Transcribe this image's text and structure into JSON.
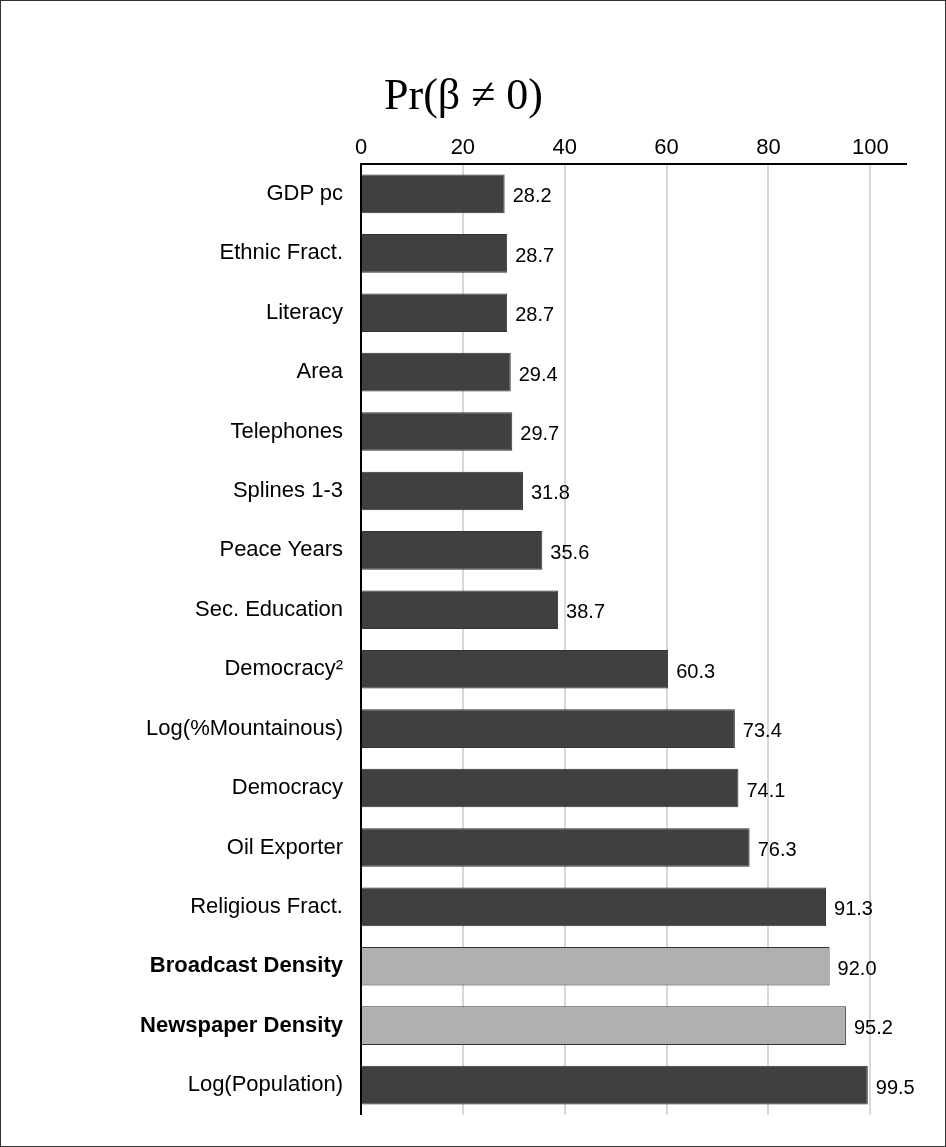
{
  "chart_data": {
    "type": "bar",
    "orientation": "horizontal",
    "title": "Pr(β ≠ 0)",
    "categories": [
      "GDP pc",
      "Ethnic Fract.",
      "Literacy",
      "Area",
      "Telephones",
      "Splines 1-3",
      "Peace Years",
      "Sec. Education",
      "Democracy²",
      "Log(%Mountainous)",
      "Democracy",
      "Oil Exporter",
      "Religious Fract.",
      "Broadcast Density",
      "Newspaper Density",
      "Log(Population)"
    ],
    "values": [
      28.2,
      28.7,
      28.7,
      29.4,
      29.7,
      31.8,
      35.6,
      38.7,
      60.3,
      73.4,
      74.1,
      76.3,
      91.3,
      92.0,
      95.2,
      99.5
    ],
    "colors": [
      "#404040",
      "#404040",
      "#404040",
      "#404040",
      "#404040",
      "#404040",
      "#404040",
      "#404040",
      "#404040",
      "#404040",
      "#404040",
      "#404040",
      "#404040",
      "#b0b0b0",
      "#b0b0b0",
      "#404040"
    ],
    "value_labels": [
      "28.2",
      "28.7",
      "28.7",
      "29.4",
      "29.7",
      "31.8",
      "35.6",
      "38.7",
      "60.3",
      "73.4",
      "74.1",
      "76.3",
      "91.3",
      "92.0",
      "95.2",
      "99.5"
    ],
    "xlim": [
      0,
      107
    ],
    "xticks": [
      0,
      20,
      40,
      60,
      80,
      100
    ],
    "grid": "x",
    "legend": false
  }
}
